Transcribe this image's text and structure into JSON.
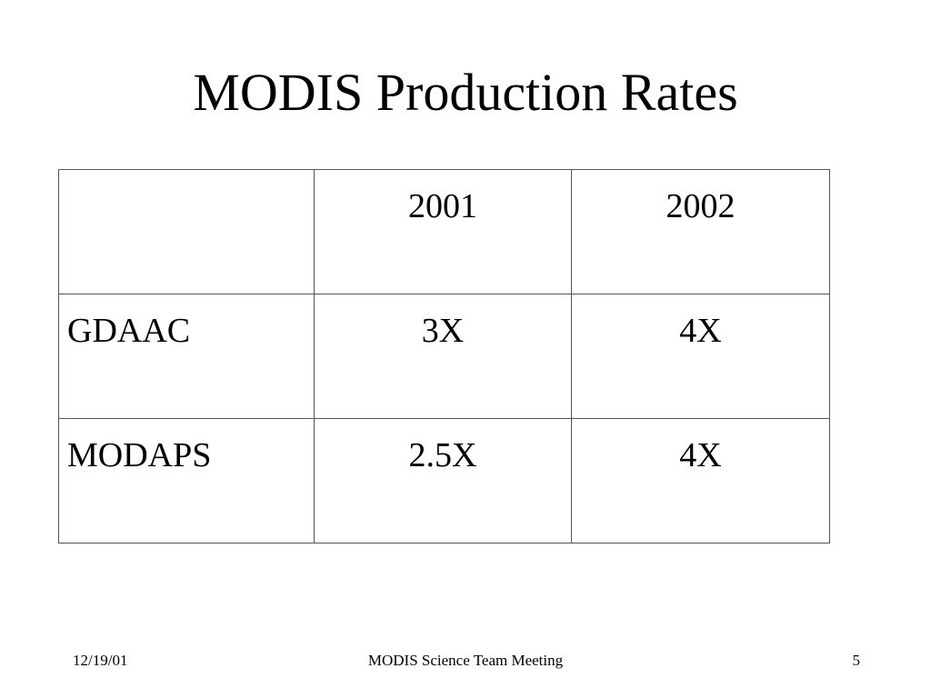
{
  "slide": {
    "title": "MODIS Production Rates"
  },
  "table": {
    "corner": "",
    "columns": [
      "2001",
      "2002"
    ],
    "rows": [
      {
        "label": "GDAAC",
        "values": [
          "3X",
          "4X"
        ]
      },
      {
        "label": "MODAPS",
        "values": [
          "2.5X",
          "4X"
        ]
      }
    ]
  },
  "footer": {
    "date": "12/19/01",
    "center": "MODIS Science Team Meeting",
    "page": "5"
  }
}
